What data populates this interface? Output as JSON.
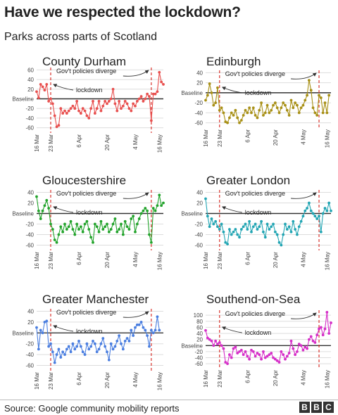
{
  "title": "Have we respected the lockdown?",
  "subtitle": "Parks across parts of Scotland",
  "source": "Source: Google community mobility reports",
  "logo": [
    "B",
    "B",
    "C"
  ],
  "chart_data": [
    {
      "type": "line",
      "title": "County Durham",
      "color": "#e8504f",
      "yticks": [
        60,
        40,
        20,
        "Baseline",
        -20,
        -40,
        -60
      ],
      "ylim": [
        -62,
        62
      ],
      "xticks": [
        "16 Mar",
        "23 Mar",
        "6 Apr",
        "20 Apr",
        "4 May",
        "16 May"
      ],
      "x_start": "16 Mar",
      "x_end": "18 May",
      "vlines": [
        "23 Mar",
        "12 May"
      ],
      "annotations": {
        "policies": "Gov't policies diverge",
        "lockdown": "lockdown"
      },
      "values": [
        15,
        2,
        30,
        25,
        18,
        30,
        -5,
        0,
        -10,
        -35,
        -58,
        -55,
        -20,
        -30,
        -25,
        -30,
        -25,
        -20,
        -15,
        -20,
        -5,
        -25,
        -30,
        -20,
        -25,
        -35,
        -40,
        -20,
        -5,
        -30,
        -20,
        -5,
        -25,
        -15,
        -5,
        -10,
        -5,
        0,
        20,
        -10,
        -25,
        -5,
        -20,
        -15,
        -5,
        -10,
        -20,
        -25,
        -10,
        -15,
        -5,
        0,
        5,
        -5,
        0,
        10,
        5,
        -45,
        10,
        10,
        15,
        55,
        35,
        30
      ]
    },
    {
      "type": "line",
      "title": "Edinburgh",
      "color": "#a89016",
      "yticks": [
        40,
        20,
        "Baseline",
        -20,
        -40,
        -60
      ],
      "ylim": [
        -62,
        42
      ],
      "xticks": [
        "16 Mar",
        "23 Mar",
        "6 Apr",
        "20 Apr",
        "4 May",
        "16 May"
      ],
      "x_start": "16 Mar",
      "x_end": "18 May",
      "vlines": [
        "23 Mar",
        "12 May"
      ],
      "annotations": {
        "policies": "Gov't policies diverge",
        "lockdown": "lockdown"
      },
      "values": [
        -15,
        -5,
        18,
        0,
        -25,
        -20,
        10,
        -35,
        -30,
        -40,
        -58,
        -60,
        -50,
        -40,
        -45,
        -35,
        -50,
        -60,
        -55,
        -45,
        -35,
        -40,
        -30,
        -40,
        -30,
        -45,
        -50,
        -35,
        -20,
        -45,
        -40,
        -25,
        -40,
        -35,
        -25,
        -20,
        -30,
        -40,
        -30,
        -20,
        -25,
        -35,
        -45,
        -15,
        -30,
        -20,
        -25,
        -40,
        -30,
        -25,
        -15,
        -5,
        25,
        5,
        -30,
        -40,
        -45,
        -5,
        -10,
        -40,
        -20,
        -40,
        -5
      ]
    },
    {
      "type": "line",
      "title": "Gloucestershire",
      "color": "#22a32b",
      "yticks": [
        40,
        20,
        "Baseline",
        -20,
        -40,
        -60
      ],
      "ylim": [
        -62,
        42
      ],
      "xticks": [
        "16 Mar",
        "23 Mar",
        "6 Apr",
        "20 Apr",
        "4 May",
        "16 May"
      ],
      "x_start": "16 Mar",
      "x_end": "18 May",
      "vlines": [
        "23 Mar",
        "12 May"
      ],
      "annotations": {
        "policies": "Gov't policies diverge",
        "lockdown": "lockdown"
      },
      "values": [
        32,
        5,
        -10,
        5,
        15,
        25,
        10,
        -20,
        -30,
        -50,
        -55,
        -40,
        -25,
        -35,
        -20,
        -30,
        -25,
        -15,
        -30,
        -40,
        -20,
        -30,
        -25,
        -35,
        -20,
        -15,
        -30,
        -45,
        -55,
        -20,
        -25,
        -35,
        -15,
        -30,
        -25,
        -20,
        -35,
        -30,
        -20,
        -10,
        -35,
        -30,
        -20,
        -40,
        -15,
        -25,
        -30,
        -10,
        -5,
        -35,
        -20,
        -10,
        0,
        5,
        10,
        5,
        -40,
        -55,
        10,
        5,
        15,
        35,
        15,
        20
      ]
    },
    {
      "type": "line",
      "title": "Greater London",
      "color": "#22a5b3",
      "yticks": [
        40,
        20,
        "Baseline",
        -20,
        -40,
        -60
      ],
      "ylim": [
        -62,
        42
      ],
      "xticks": [
        "16 Mar",
        "23 Mar",
        "6 Apr",
        "20 Apr",
        "4 May",
        "16 May"
      ],
      "x_start": "16 Mar",
      "x_end": "18 May",
      "vlines": [
        "23 Mar",
        "12 May"
      ],
      "annotations": {
        "policies": "Gov't policies diverge",
        "lockdown": "lockdown"
      },
      "values": [
        28,
        -5,
        -25,
        -10,
        -20,
        -15,
        -25,
        -30,
        -20,
        -35,
        -55,
        -58,
        -30,
        -40,
        -35,
        -30,
        -40,
        -45,
        -30,
        -25,
        -20,
        -30,
        -15,
        -35,
        -25,
        -20,
        -30,
        -25,
        -15,
        -35,
        -45,
        -20,
        -30,
        -25,
        -20,
        -35,
        -40,
        -55,
        -60,
        -40,
        -20,
        -30,
        -25,
        -35,
        -15,
        -30,
        -40,
        -25,
        -15,
        -5,
        5,
        10,
        20,
        5,
        0,
        -5,
        -10,
        -5,
        -35,
        0,
        10,
        5,
        20,
        5
      ]
    },
    {
      "type": "line",
      "title": "Greater Manchester",
      "color": "#4a7ee0",
      "yticks": [
        40,
        20,
        "Baseline",
        -20,
        -40,
        -60
      ],
      "ylim": [
        -62,
        42
      ],
      "xticks": [
        "16 Mar",
        "23 Mar",
        "6 Apr",
        "20 Apr",
        "4 May",
        "16 May"
      ],
      "x_start": "16 Mar",
      "x_end": "18 May",
      "vlines": [
        "23 Mar",
        "12 May"
      ],
      "annotations": {
        "policies": "Gov't policies diverge",
        "lockdown": "lockdown"
      },
      "values": [
        10,
        -30,
        5,
        0,
        20,
        22,
        -25,
        -20,
        -35,
        -55,
        -40,
        -30,
        -45,
        -35,
        -40,
        -30,
        -25,
        -35,
        -20,
        -30,
        -25,
        -15,
        -25,
        -35,
        -40,
        -20,
        -30,
        -25,
        -15,
        -20,
        -35,
        -30,
        -20,
        -10,
        -25,
        -35,
        -50,
        -20,
        -30,
        -25,
        -15,
        -5,
        -20,
        -30,
        -15,
        -10,
        -15,
        5,
        -5,
        10,
        15,
        15,
        20,
        10,
        5,
        -5,
        -25,
        5,
        0,
        5,
        30,
        5
      ]
    },
    {
      "type": "line",
      "title": "Southend-on-Sea",
      "color": "#d62fc8",
      "yticks": [
        100,
        80,
        60,
        40,
        20,
        "Baseline",
        -20,
        -40,
        -60
      ],
      "ylim": [
        -62,
        112
      ],
      "xticks": [
        "16 Mar",
        "23 Mar",
        "6 Apr",
        "20 Apr",
        "4 May",
        "16 May"
      ],
      "x_start": "16 Mar",
      "x_end": "18 May",
      "vlines": [
        "23 Mar",
        "12 May"
      ],
      "annotations": {
        "policies": "Gov't policies diverge",
        "lockdown": "lockdown"
      },
      "values": [
        50,
        25,
        20,
        15,
        0,
        15,
        5,
        10,
        0,
        -10,
        -55,
        -60,
        -30,
        -40,
        -10,
        -5,
        -25,
        -20,
        -15,
        -30,
        -20,
        -35,
        -45,
        -15,
        -20,
        -35,
        -25,
        -30,
        -45,
        -20,
        -40,
        -35,
        -30,
        -25,
        -40,
        -45,
        -50,
        -55,
        -20,
        -30,
        -45,
        -35,
        -25,
        15,
        -10,
        -30,
        -20,
        5,
        0,
        -15,
        -5,
        -10,
        20,
        30,
        15,
        10,
        35,
        55,
        60,
        35,
        55,
        110,
        40,
        75
      ]
    }
  ]
}
